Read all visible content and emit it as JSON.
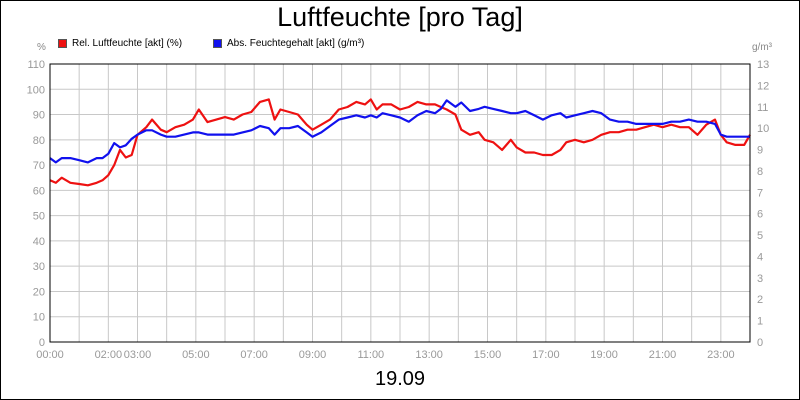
{
  "chart_data": {
    "type": "line",
    "title": "Luftfeuchte [pro Tag]",
    "date_label": "19.09",
    "y_left": {
      "unit": "%",
      "min": 0,
      "max": 110,
      "ticks": [
        "0",
        "10",
        "20",
        "30",
        "40",
        "50",
        "60",
        "70",
        "80",
        "90",
        "100",
        "110"
      ]
    },
    "y_right": {
      "unit": "g/m³",
      "min": 0,
      "max": 13,
      "ticks": [
        "0",
        "1",
        "2",
        "3",
        "4",
        "5",
        "6",
        "7",
        "8",
        "9",
        "10",
        "11",
        "12",
        "13"
      ]
    },
    "x_ticks": [
      {
        "h": 0,
        "label": "00:00"
      },
      {
        "h": 2,
        "label": "02:00"
      },
      {
        "h": 3,
        "label": "03:00"
      },
      {
        "h": 5,
        "label": "05:00"
      },
      {
        "h": 7,
        "label": "07:00"
      },
      {
        "h": 9,
        "label": "09:00"
      },
      {
        "h": 11,
        "label": "11:00"
      },
      {
        "h": 13,
        "label": "13:00"
      },
      {
        "h": 15,
        "label": "15:00"
      },
      {
        "h": 17,
        "label": "17:00"
      },
      {
        "h": 19,
        "label": "19:00"
      },
      {
        "h": 21,
        "label": "21:00"
      },
      {
        "h": 23,
        "label": "23:00"
      }
    ],
    "grid": true,
    "legend_position": "top-left",
    "series": [
      {
        "name": "Rel. Luftfeuchte [akt] (%)",
        "axis": "left",
        "color": "#ee1111",
        "points": [
          [
            0,
            64
          ],
          [
            0.2,
            63
          ],
          [
            0.4,
            65
          ],
          [
            0.7,
            63
          ],
          [
            1.0,
            62.5
          ],
          [
            1.3,
            62
          ],
          [
            1.6,
            63
          ],
          [
            1.8,
            64
          ],
          [
            2.0,
            66
          ],
          [
            2.2,
            70
          ],
          [
            2.4,
            76
          ],
          [
            2.6,
            73
          ],
          [
            2.8,
            74
          ],
          [
            3.0,
            82
          ],
          [
            3.3,
            85
          ],
          [
            3.5,
            88
          ],
          [
            3.8,
            84
          ],
          [
            4.0,
            83
          ],
          [
            4.3,
            85
          ],
          [
            4.6,
            86
          ],
          [
            4.9,
            88
          ],
          [
            5.1,
            92
          ],
          [
            5.4,
            87
          ],
          [
            5.7,
            88
          ],
          [
            6.0,
            89
          ],
          [
            6.3,
            88
          ],
          [
            6.6,
            90
          ],
          [
            6.9,
            91
          ],
          [
            7.2,
            95
          ],
          [
            7.5,
            96
          ],
          [
            7.7,
            88
          ],
          [
            7.9,
            92
          ],
          [
            8.2,
            91
          ],
          [
            8.5,
            90
          ],
          [
            8.8,
            86
          ],
          [
            9.0,
            84
          ],
          [
            9.3,
            86
          ],
          [
            9.6,
            88
          ],
          [
            9.9,
            92
          ],
          [
            10.2,
            93
          ],
          [
            10.5,
            95
          ],
          [
            10.8,
            94
          ],
          [
            11.0,
            96
          ],
          [
            11.2,
            92
          ],
          [
            11.4,
            94
          ],
          [
            11.7,
            94
          ],
          [
            12.0,
            92
          ],
          [
            12.3,
            93
          ],
          [
            12.6,
            95
          ],
          [
            12.9,
            94
          ],
          [
            13.2,
            94
          ],
          [
            13.4,
            93
          ],
          [
            13.6,
            92
          ],
          [
            13.9,
            90
          ],
          [
            14.1,
            84
          ],
          [
            14.4,
            82
          ],
          [
            14.7,
            83
          ],
          [
            14.9,
            80
          ],
          [
            15.2,
            79
          ],
          [
            15.5,
            76
          ],
          [
            15.8,
            80
          ],
          [
            16.0,
            77
          ],
          [
            16.3,
            75
          ],
          [
            16.6,
            75
          ],
          [
            16.9,
            74
          ],
          [
            17.2,
            74
          ],
          [
            17.5,
            76
          ],
          [
            17.7,
            79
          ],
          [
            18.0,
            80
          ],
          [
            18.3,
            79
          ],
          [
            18.6,
            80
          ],
          [
            18.9,
            82
          ],
          [
            19.2,
            83
          ],
          [
            19.5,
            83
          ],
          [
            19.8,
            84
          ],
          [
            20.1,
            84
          ],
          [
            20.4,
            85
          ],
          [
            20.7,
            86
          ],
          [
            21.0,
            85
          ],
          [
            21.3,
            86
          ],
          [
            21.6,
            85
          ],
          [
            21.9,
            85
          ],
          [
            22.2,
            82
          ],
          [
            22.5,
            86
          ],
          [
            22.8,
            88
          ],
          [
            23.0,
            82
          ],
          [
            23.2,
            79
          ],
          [
            23.5,
            78
          ],
          [
            23.8,
            78
          ],
          [
            24.0,
            82
          ]
        ]
      },
      {
        "name": "Abs. Feuchtegehalt [akt] (g/m³)",
        "axis": "right",
        "color": "#1111ee",
        "points": [
          [
            0,
            8.6
          ],
          [
            0.2,
            8.4
          ],
          [
            0.4,
            8.6
          ],
          [
            0.7,
            8.6
          ],
          [
            1.0,
            8.5
          ],
          [
            1.3,
            8.4
          ],
          [
            1.6,
            8.6
          ],
          [
            1.8,
            8.6
          ],
          [
            2.0,
            8.8
          ],
          [
            2.2,
            9.3
          ],
          [
            2.4,
            9.1
          ],
          [
            2.6,
            9.2
          ],
          [
            2.8,
            9.5
          ],
          [
            3.0,
            9.7
          ],
          [
            3.3,
            9.9
          ],
          [
            3.5,
            9.9
          ],
          [
            3.8,
            9.7
          ],
          [
            4.0,
            9.6
          ],
          [
            4.3,
            9.6
          ],
          [
            4.6,
            9.7
          ],
          [
            4.9,
            9.8
          ],
          [
            5.1,
            9.8
          ],
          [
            5.4,
            9.7
          ],
          [
            5.7,
            9.7
          ],
          [
            6.0,
            9.7
          ],
          [
            6.3,
            9.7
          ],
          [
            6.6,
            9.8
          ],
          [
            6.9,
            9.9
          ],
          [
            7.2,
            10.1
          ],
          [
            7.5,
            10.0
          ],
          [
            7.7,
            9.7
          ],
          [
            7.9,
            10.0
          ],
          [
            8.2,
            10.0
          ],
          [
            8.5,
            10.1
          ],
          [
            8.8,
            9.8
          ],
          [
            9.0,
            9.6
          ],
          [
            9.3,
            9.8
          ],
          [
            9.6,
            10.1
          ],
          [
            9.9,
            10.4
          ],
          [
            10.2,
            10.5
          ],
          [
            10.5,
            10.6
          ],
          [
            10.8,
            10.5
          ],
          [
            11.0,
            10.6
          ],
          [
            11.2,
            10.5
          ],
          [
            11.4,
            10.7
          ],
          [
            11.7,
            10.6
          ],
          [
            12.0,
            10.5
          ],
          [
            12.3,
            10.3
          ],
          [
            12.6,
            10.6
          ],
          [
            12.9,
            10.8
          ],
          [
            13.2,
            10.7
          ],
          [
            13.4,
            10.9
          ],
          [
            13.6,
            11.3
          ],
          [
            13.9,
            11.0
          ],
          [
            14.1,
            11.2
          ],
          [
            14.4,
            10.8
          ],
          [
            14.7,
            10.9
          ],
          [
            14.9,
            11.0
          ],
          [
            15.2,
            10.9
          ],
          [
            15.5,
            10.8
          ],
          [
            15.8,
            10.7
          ],
          [
            16.0,
            10.7
          ],
          [
            16.3,
            10.8
          ],
          [
            16.6,
            10.6
          ],
          [
            16.9,
            10.4
          ],
          [
            17.2,
            10.6
          ],
          [
            17.5,
            10.7
          ],
          [
            17.7,
            10.5
          ],
          [
            18.0,
            10.6
          ],
          [
            18.3,
            10.7
          ],
          [
            18.6,
            10.8
          ],
          [
            18.9,
            10.7
          ],
          [
            19.2,
            10.4
          ],
          [
            19.5,
            10.3
          ],
          [
            19.8,
            10.3
          ],
          [
            20.1,
            10.2
          ],
          [
            20.4,
            10.2
          ],
          [
            20.7,
            10.2
          ],
          [
            21.0,
            10.2
          ],
          [
            21.3,
            10.3
          ],
          [
            21.6,
            10.3
          ],
          [
            21.9,
            10.4
          ],
          [
            22.2,
            10.3
          ],
          [
            22.5,
            10.3
          ],
          [
            22.8,
            10.2
          ],
          [
            23.0,
            9.7
          ],
          [
            23.2,
            9.6
          ],
          [
            23.5,
            9.6
          ],
          [
            23.8,
            9.6
          ],
          [
            24.0,
            9.6
          ]
        ]
      }
    ]
  }
}
